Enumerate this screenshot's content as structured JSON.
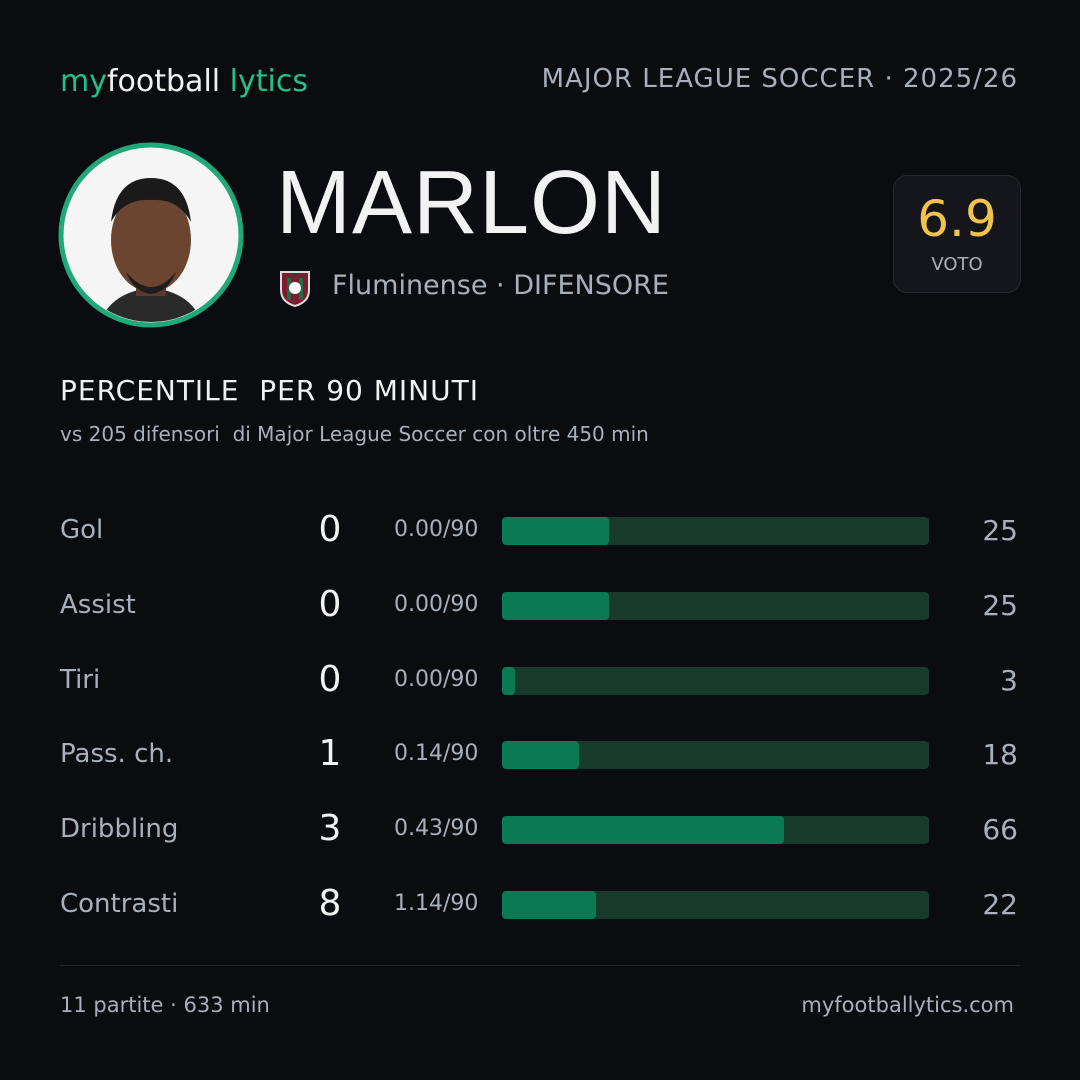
{
  "logo": [
    "my",
    "football",
    "lytics"
  ],
  "league": "MAJOR LEAGUE SOCCER · 2025/26",
  "player": {
    "name": "MARLON",
    "club": "Fluminense · DIFENSORE",
    "rating": 6.9,
    "rating_label": "VOTO"
  },
  "section": {
    "title": "PERCENTILE  PER 90 MINUTI",
    "subtitle": "vs 205 difensori  di Major League Soccer con oltre 450 min"
  },
  "stats": {
    "xlim": [
      0,
      100
    ],
    "rows": [
      {
        "label": "Gol",
        "total": 0,
        "per90": "0.00/90",
        "percentile": 25
      },
      {
        "label": "Assist",
        "total": 0,
        "per90": "0.00/90",
        "percentile": 25
      },
      {
        "label": "Tiri",
        "total": 0,
        "per90": "0.00/90",
        "percentile": 3
      },
      {
        "label": "Pass. ch.",
        "total": 1,
        "per90": "0.14/90",
        "percentile": 18
      },
      {
        "label": "Dribbling",
        "total": 3,
        "per90": "0.43/90",
        "percentile": 66
      },
      {
        "label": "Contrasti",
        "total": 8,
        "per90": "1.14/90",
        "percentile": 22
      }
    ]
  },
  "footer": {
    "left": "11 partite · 633 min",
    "right": "myfootballytics.com"
  }
}
